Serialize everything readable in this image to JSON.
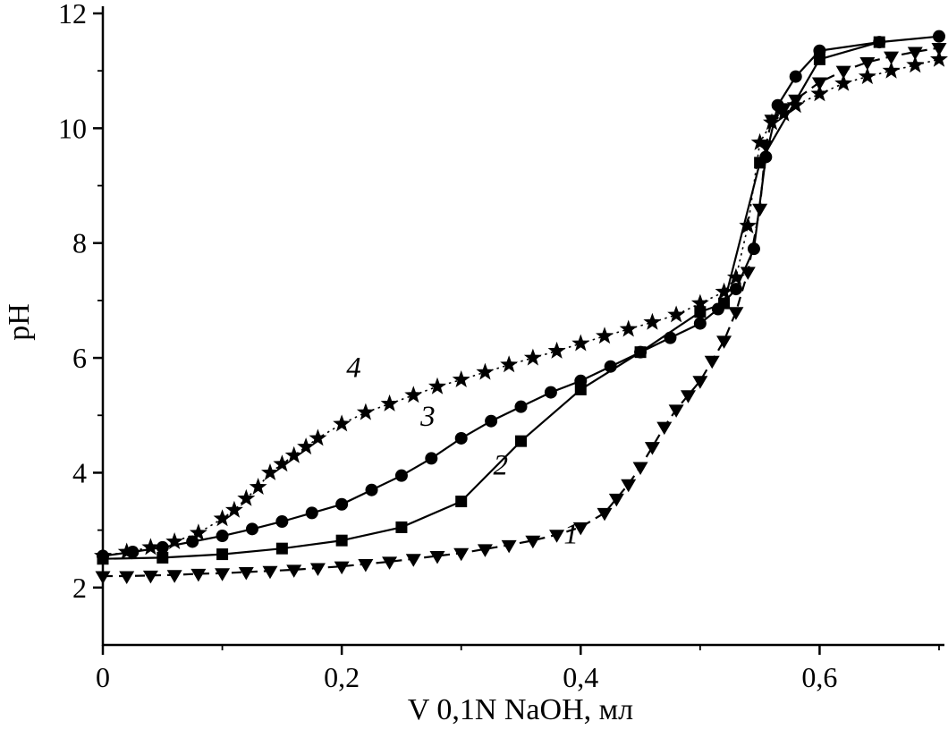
{
  "page": {
    "background": "#ffffff"
  },
  "chart_data": {
    "type": "line",
    "title": "",
    "xlabel": "V 0,1N NaOH, мл",
    "ylabel": "pH",
    "xlim": [
      0,
      0.7
    ],
    "ylim": [
      1,
      12
    ],
    "grid": false,
    "legend": "none",
    "axis_color": "#000000",
    "x_ticks": [
      {
        "value": 0,
        "label": "0"
      },
      {
        "value": 0.2,
        "label": "0,2"
      },
      {
        "value": 0.4,
        "label": "0,4"
      },
      {
        "value": 0.6,
        "label": "0,6"
      }
    ],
    "x_minor_ticks": [
      0.1,
      0.3,
      0.5,
      0.7
    ],
    "y_ticks": [
      {
        "value": 2,
        "label": "2"
      },
      {
        "value": 4,
        "label": "4"
      },
      {
        "value": 6,
        "label": "6"
      },
      {
        "value": 8,
        "label": "8"
      },
      {
        "value": 10,
        "label": "10"
      },
      {
        "value": 12,
        "label": "12"
      }
    ],
    "y_minor_ticks": [
      3,
      5,
      7,
      9,
      11
    ],
    "series": [
      {
        "name": "1",
        "marker": "triangle-down",
        "line_style": "dashed",
        "color": "#000000",
        "annotation": {
          "text": "1",
          "x": 0.392,
          "y": 2.95
        },
        "points": [
          [
            0,
            2.2
          ],
          [
            0.02,
            2.2
          ],
          [
            0.04,
            2.21
          ],
          [
            0.06,
            2.22
          ],
          [
            0.08,
            2.24
          ],
          [
            0.1,
            2.25
          ],
          [
            0.12,
            2.27
          ],
          [
            0.14,
            2.29
          ],
          [
            0.16,
            2.31
          ],
          [
            0.18,
            2.34
          ],
          [
            0.2,
            2.37
          ],
          [
            0.22,
            2.41
          ],
          [
            0.24,
            2.45
          ],
          [
            0.26,
            2.5
          ],
          [
            0.28,
            2.55
          ],
          [
            0.3,
            2.6
          ],
          [
            0.32,
            2.67
          ],
          [
            0.34,
            2.74
          ],
          [
            0.36,
            2.82
          ],
          [
            0.38,
            2.92
          ],
          [
            0.4,
            3.05
          ],
          [
            0.42,
            3.3
          ],
          [
            0.43,
            3.55
          ],
          [
            0.44,
            3.8
          ],
          [
            0.45,
            4.1
          ],
          [
            0.46,
            4.45
          ],
          [
            0.47,
            4.8
          ],
          [
            0.48,
            5.1
          ],
          [
            0.49,
            5.35
          ],
          [
            0.5,
            5.6
          ],
          [
            0.51,
            5.95
          ],
          [
            0.52,
            6.3
          ],
          [
            0.53,
            6.8
          ],
          [
            0.54,
            7.5
          ],
          [
            0.55,
            8.6
          ],
          [
            0.555,
            9.7
          ],
          [
            0.56,
            10.15
          ],
          [
            0.57,
            10.35
          ],
          [
            0.58,
            10.5
          ],
          [
            0.6,
            10.8
          ],
          [
            0.62,
            11.0
          ],
          [
            0.64,
            11.15
          ],
          [
            0.66,
            11.25
          ],
          [
            0.68,
            11.33
          ],
          [
            0.7,
            11.4
          ]
        ]
      },
      {
        "name": "2",
        "marker": "square",
        "line_style": "solid",
        "color": "#000000",
        "annotation": {
          "text": "2",
          "x": 0.333,
          "y": 4.15
        },
        "points": [
          [
            0,
            2.5
          ],
          [
            0.05,
            2.52
          ],
          [
            0.1,
            2.58
          ],
          [
            0.15,
            2.68
          ],
          [
            0.2,
            2.82
          ],
          [
            0.25,
            3.05
          ],
          [
            0.3,
            3.5
          ],
          [
            0.35,
            4.55
          ],
          [
            0.4,
            5.45
          ],
          [
            0.45,
            6.1
          ],
          [
            0.5,
            6.8
          ],
          [
            0.52,
            6.95
          ],
          [
            0.55,
            9.4
          ],
          [
            0.6,
            11.2
          ],
          [
            0.65,
            11.5
          ]
        ]
      },
      {
        "name": "3",
        "marker": "circle",
        "line_style": "solid",
        "color": "#000000",
        "annotation": {
          "text": "3",
          "x": 0.272,
          "y": 5.0
        },
        "points": [
          [
            0,
            2.55
          ],
          [
            0.025,
            2.62
          ],
          [
            0.05,
            2.7
          ],
          [
            0.075,
            2.8
          ],
          [
            0.1,
            2.9
          ],
          [
            0.125,
            3.02
          ],
          [
            0.15,
            3.15
          ],
          [
            0.175,
            3.3
          ],
          [
            0.2,
            3.45
          ],
          [
            0.225,
            3.7
          ],
          [
            0.25,
            3.95
          ],
          [
            0.275,
            4.25
          ],
          [
            0.3,
            4.6
          ],
          [
            0.325,
            4.9
          ],
          [
            0.35,
            5.15
          ],
          [
            0.375,
            5.4
          ],
          [
            0.4,
            5.6
          ],
          [
            0.425,
            5.85
          ],
          [
            0.45,
            6.1
          ],
          [
            0.475,
            6.35
          ],
          [
            0.5,
            6.6
          ],
          [
            0.515,
            6.85
          ],
          [
            0.53,
            7.2
          ],
          [
            0.545,
            7.9
          ],
          [
            0.555,
            9.5
          ],
          [
            0.565,
            10.4
          ],
          [
            0.58,
            10.9
          ],
          [
            0.6,
            11.35
          ],
          [
            0.65,
            11.5
          ],
          [
            0.7,
            11.6
          ]
        ]
      },
      {
        "name": "4",
        "marker": "star",
        "line_style": "dotted",
        "color": "#000000",
        "annotation": {
          "text": "4",
          "x": 0.21,
          "y": 5.85
        },
        "points": [
          [
            0,
            2.55
          ],
          [
            0.02,
            2.62
          ],
          [
            0.04,
            2.7
          ],
          [
            0.06,
            2.8
          ],
          [
            0.08,
            2.95
          ],
          [
            0.1,
            3.2
          ],
          [
            0.11,
            3.35
          ],
          [
            0.12,
            3.55
          ],
          [
            0.13,
            3.75
          ],
          [
            0.14,
            4.0
          ],
          [
            0.15,
            4.15
          ],
          [
            0.16,
            4.3
          ],
          [
            0.17,
            4.45
          ],
          [
            0.18,
            4.6
          ],
          [
            0.2,
            4.85
          ],
          [
            0.22,
            5.05
          ],
          [
            0.24,
            5.2
          ],
          [
            0.26,
            5.35
          ],
          [
            0.28,
            5.5
          ],
          [
            0.3,
            5.62
          ],
          [
            0.32,
            5.75
          ],
          [
            0.34,
            5.88
          ],
          [
            0.36,
            6.0
          ],
          [
            0.38,
            6.12
          ],
          [
            0.4,
            6.25
          ],
          [
            0.42,
            6.38
          ],
          [
            0.44,
            6.5
          ],
          [
            0.46,
            6.62
          ],
          [
            0.48,
            6.75
          ],
          [
            0.5,
            6.95
          ],
          [
            0.52,
            7.15
          ],
          [
            0.53,
            7.4
          ],
          [
            0.54,
            8.3
          ],
          [
            0.55,
            9.75
          ],
          [
            0.56,
            10.1
          ],
          [
            0.57,
            10.25
          ],
          [
            0.58,
            10.4
          ],
          [
            0.6,
            10.6
          ],
          [
            0.62,
            10.78
          ],
          [
            0.64,
            10.9
          ],
          [
            0.66,
            11.0
          ],
          [
            0.68,
            11.1
          ],
          [
            0.7,
            11.2
          ]
        ]
      }
    ]
  }
}
